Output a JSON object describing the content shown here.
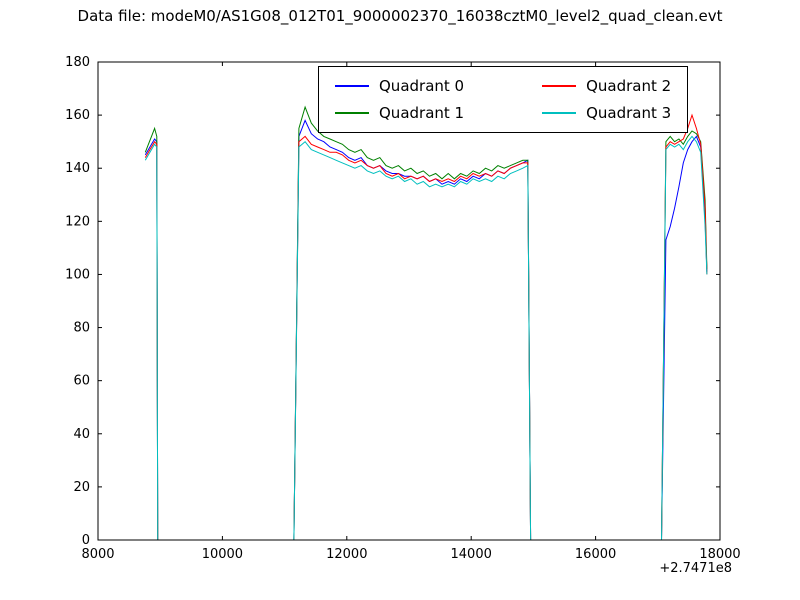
{
  "title": "Data file: modeM0/AS1G08_012T01_9000002370_16038cztM0_level2_quad_clean.evt",
  "axes": {
    "x_offset_label": "+2.7471e8",
    "x_ticks": [
      8000,
      10000,
      12000,
      14000,
      16000,
      18000
    ],
    "x_tick_labels": [
      "8000",
      "10000",
      "12000",
      "14000",
      "16000",
      "18000"
    ],
    "y_ticks": [
      0,
      20,
      40,
      60,
      80,
      100,
      120,
      140,
      160,
      180
    ],
    "y_tick_labels": [
      "0",
      "20",
      "40",
      "60",
      "80",
      "100",
      "120",
      "140",
      "160",
      "180"
    ]
  },
  "legend": {
    "position": "upper center",
    "columns": 2,
    "labels": [
      "Quadrant 0",
      "Quadrant 1",
      "Quadrant 2",
      "Quadrant 3"
    ]
  },
  "chart_data": {
    "type": "line",
    "title": "Data file: modeM0/AS1G08_012T01_9000002370_16038cztM0_level2_quad_clean.evt",
    "xlabel": "",
    "ylabel": "",
    "xlim": [
      8000,
      18000
    ],
    "ylim": [
      0,
      180
    ],
    "x_axis_offset": "+2.7471e8",
    "grid": false,
    "legend_position": "upper center",
    "x": [
      8760,
      8810,
      8860,
      8910,
      8945,
      8960,
      9200,
      10000,
      11000,
      11150,
      11230,
      11330,
      11430,
      11530,
      11630,
      11730,
      11830,
      11930,
      12030,
      12130,
      12230,
      12330,
      12430,
      12530,
      12630,
      12730,
      12830,
      12930,
      13030,
      13130,
      13230,
      13330,
      13430,
      13530,
      13630,
      13730,
      13830,
      13930,
      14030,
      14130,
      14230,
      14330,
      14430,
      14530,
      14630,
      14730,
      14830,
      14910,
      14955,
      15200,
      16000,
      17000,
      17060,
      17130,
      17200,
      17270,
      17340,
      17410,
      17480,
      17550,
      17620,
      17690,
      17760,
      17790
    ],
    "series": [
      {
        "name": "Quadrant 0",
        "color": "#0000ff",
        "values": [
          145,
          147,
          149,
          151,
          150,
          0,
          0,
          0,
          0,
          0,
          152,
          158,
          153,
          151,
          150,
          148,
          147,
          146,
          144,
          143,
          144,
          141,
          140,
          141,
          139,
          138,
          138,
          137,
          137,
          136,
          137,
          135,
          136,
          134,
          135,
          134,
          136,
          135,
          137,
          136,
          138,
          137,
          139,
          138,
          140,
          141,
          142,
          143,
          0,
          0,
          0,
          0,
          0,
          113,
          118,
          125,
          133,
          142,
          147,
          150,
          152,
          148,
          120,
          101
        ]
      },
      {
        "name": "Quadrant 1",
        "color": "#008000",
        "values": [
          146,
          149,
          152,
          155,
          152,
          0,
          0,
          0,
          0,
          0,
          155,
          163,
          157,
          154,
          152,
          151,
          150,
          149,
          147,
          146,
          147,
          144,
          143,
          144,
          141,
          140,
          141,
          139,
          140,
          138,
          139,
          137,
          138,
          136,
          138,
          136,
          138,
          137,
          139,
          138,
          140,
          139,
          141,
          140,
          141,
          142,
          143,
          143,
          0,
          0,
          0,
          0,
          0,
          150,
          152,
          150,
          151,
          149,
          152,
          154,
          153,
          150,
          128,
          102
        ]
      },
      {
        "name": "Quadrant 2",
        "color": "#ff0000",
        "values": [
          144,
          146,
          148,
          150,
          149,
          0,
          0,
          0,
          0,
          0,
          150,
          152,
          149,
          148,
          147,
          146,
          146,
          145,
          143,
          142,
          143,
          141,
          140,
          141,
          138,
          137,
          138,
          136,
          137,
          136,
          137,
          135,
          136,
          135,
          136,
          135,
          137,
          136,
          138,
          137,
          138,
          137,
          139,
          138,
          140,
          141,
          142,
          142,
          0,
          0,
          0,
          0,
          0,
          148,
          150,
          149,
          150,
          151,
          155,
          160,
          155,
          149,
          125,
          100
        ]
      },
      {
        "name": "Quadrant 3",
        "color": "#00bfbf",
        "values": [
          143,
          145,
          147,
          149,
          148,
          0,
          0,
          0,
          0,
          0,
          148,
          150,
          147,
          146,
          145,
          144,
          143,
          142,
          141,
          140,
          141,
          139,
          138,
          139,
          137,
          136,
          137,
          135,
          136,
          134,
          135,
          133,
          134,
          133,
          134,
          133,
          135,
          134,
          136,
          135,
          136,
          135,
          137,
          136,
          138,
          139,
          140,
          141,
          0,
          0,
          0,
          0,
          0,
          147,
          149,
          148,
          149,
          147,
          150,
          152,
          150,
          146,
          118,
          100
        ]
      }
    ]
  }
}
